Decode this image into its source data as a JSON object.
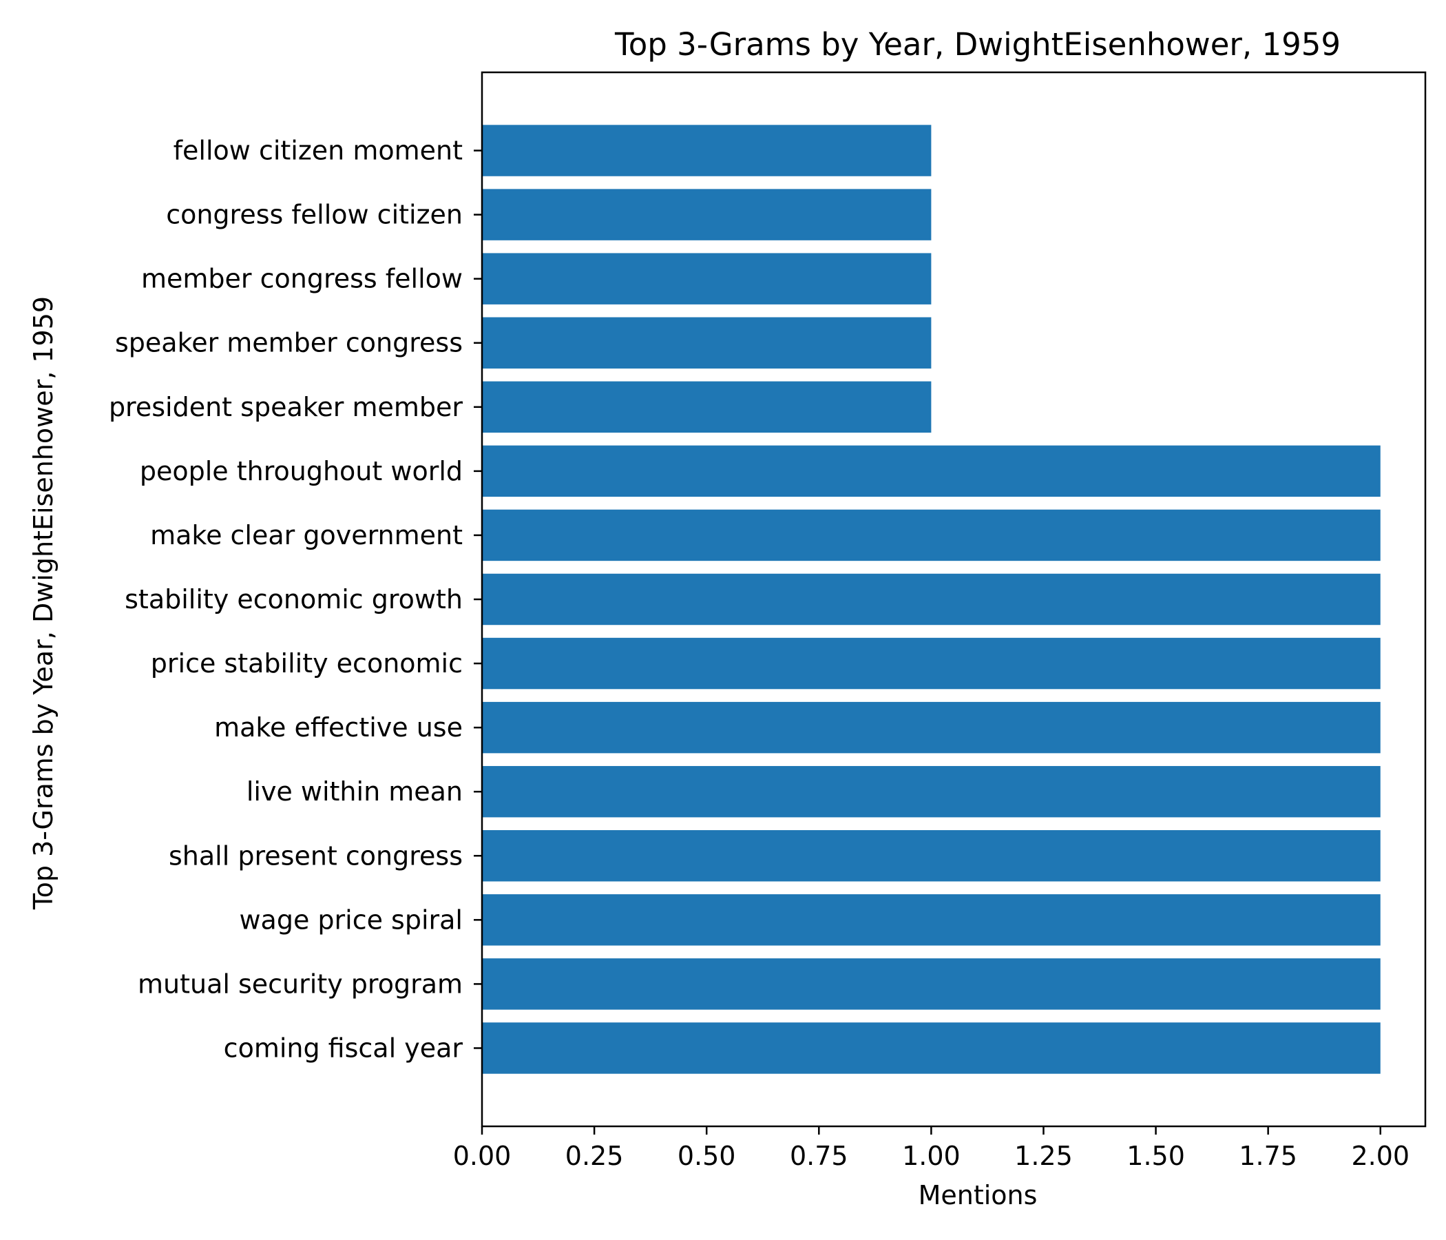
{
  "chart_data": {
    "type": "bar",
    "orientation": "horizontal",
    "title": "Top 3-Grams by Year, DwightEisenhower, 1959",
    "xlabel": "Mentions",
    "ylabel": "Top 3-Grams by Year, DwightEisenhower, 1959",
    "categories": [
      "coming fiscal year",
      "mutual security program",
      "wage price spiral",
      "shall present congress",
      "live within mean",
      "make effective use",
      "price stability economic",
      "stability economic growth",
      "make clear government",
      "people throughout world",
      "president speaker member",
      "speaker member congress",
      "member congress fellow",
      "congress fellow citizen",
      "fellow citizen moment"
    ],
    "values": [
      2,
      2,
      2,
      2,
      2,
      2,
      2,
      2,
      2,
      2,
      1,
      1,
      1,
      1,
      1
    ],
    "xlim": [
      0,
      2.1
    ],
    "xticks": [
      "0.00",
      "0.25",
      "0.50",
      "0.75",
      "1.00",
      "1.25",
      "1.50",
      "1.75",
      "2.00"
    ],
    "bar_color": "#1f77b4",
    "grid": false,
    "legend": "none"
  }
}
